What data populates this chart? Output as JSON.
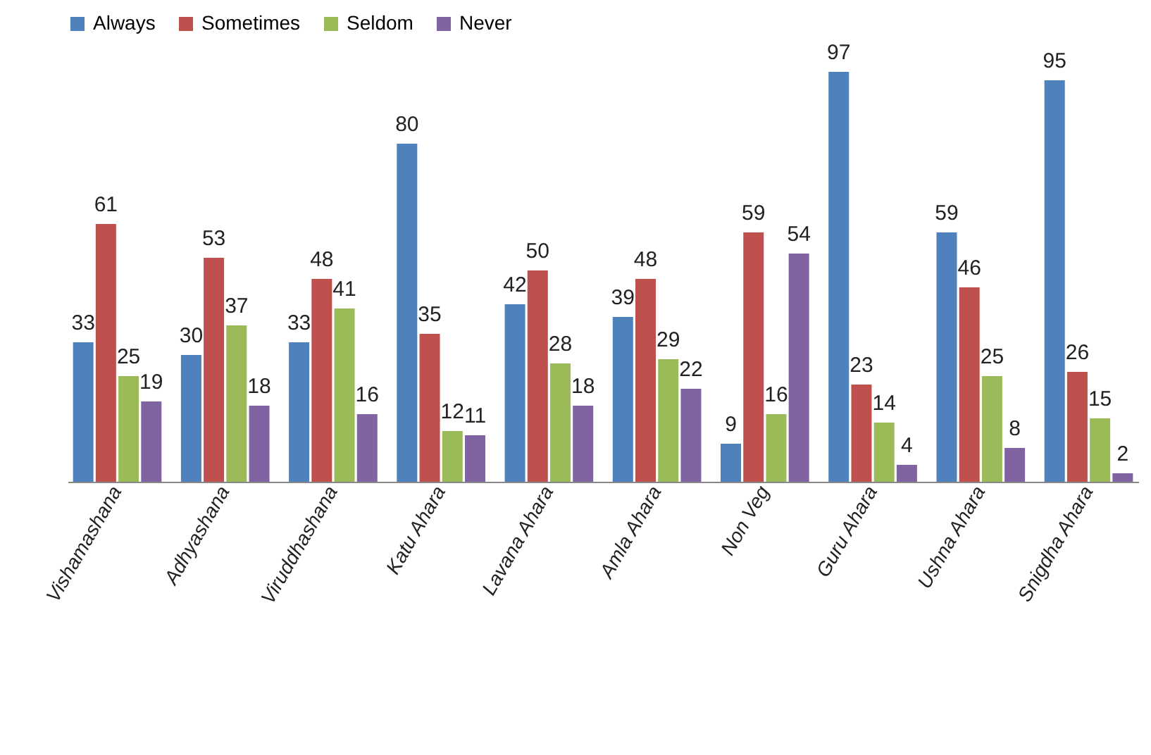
{
  "chart_data": {
    "type": "bar",
    "categories": [
      "Vishamashana",
      "Adhyashana",
      "Viruddhashana",
      "Katu Ahara",
      "Lavana Ahara",
      "Amla Ahara",
      "Non Veg",
      "Guru Ahara",
      "Ushna Ahara",
      "Snigdha Ahara"
    ],
    "series": [
      {
        "name": "Always",
        "color": "#4f81bd",
        "values": [
          33,
          30,
          33,
          80,
          42,
          39,
          9,
          97,
          59,
          95
        ]
      },
      {
        "name": "Sometimes",
        "color": "#c0504d",
        "values": [
          61,
          53,
          48,
          35,
          50,
          48,
          59,
          23,
          46,
          26
        ]
      },
      {
        "name": "Seldom",
        "color": "#9bbb59",
        "values": [
          25,
          37,
          41,
          12,
          28,
          29,
          16,
          14,
          25,
          15
        ]
      },
      {
        "name": "Never",
        "color": "#8064a2",
        "values": [
          19,
          18,
          16,
          11,
          18,
          22,
          54,
          4,
          8,
          2
        ]
      }
    ],
    "data_labels": true,
    "legend": "top"
  }
}
